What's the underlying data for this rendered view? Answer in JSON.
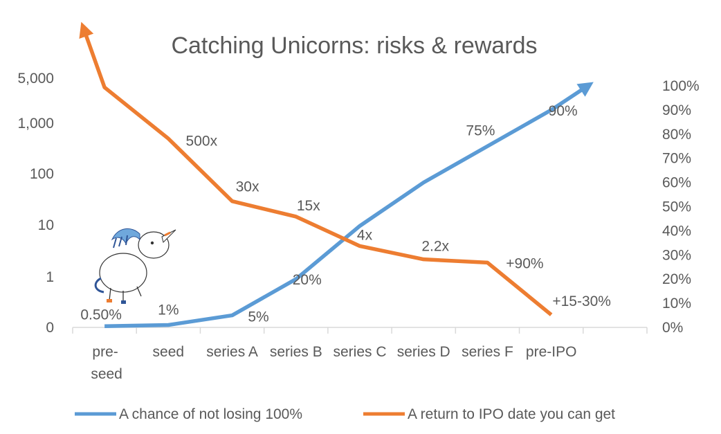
{
  "colors": {
    "risk": "#5B9BD5",
    "reward": "#ED7D31",
    "text": "#595959",
    "axis": "#D9D9D9"
  },
  "chart_data": {
    "type": "line",
    "title": "Catching Unicorns: risks & rewards",
    "categories": [
      "pre-seed",
      "seed",
      "series A",
      "series B",
      "series C",
      "series D",
      "series F",
      "pre-IPO"
    ],
    "y_left": {
      "scale": "log",
      "ticks": [
        "0",
        "1",
        "10",
        "100",
        "1,000",
        "5,000"
      ]
    },
    "y_right": {
      "ticks": [
        "0%",
        "10%",
        "20%",
        "30%",
        "40%",
        "50%",
        "60%",
        "70%",
        "80%",
        "90%",
        "100%"
      ],
      "ylim": [
        0,
        100
      ]
    },
    "series": [
      {
        "name": "A chance of not losing 100%",
        "axis": "right",
        "values": [
          0.5,
          1,
          5,
          20,
          42,
          60,
          75,
          90
        ],
        "labels": [
          "0.50%",
          "1%",
          "5%",
          "20%",
          "",
          "",
          "75%",
          "90%"
        ],
        "arrow_end": 101
      },
      {
        "name": "A return to IPO date you can get",
        "axis": "left",
        "values": [
          5000,
          500,
          30,
          15,
          4,
          2.2,
          1.9,
          0.25
        ],
        "labels": [
          "",
          "500x",
          "30x",
          "15x",
          "4x",
          "2.2x",
          "+90%",
          "+15-30%"
        ],
        "arrow_start": 150000
      }
    ],
    "legend": "bottom"
  }
}
